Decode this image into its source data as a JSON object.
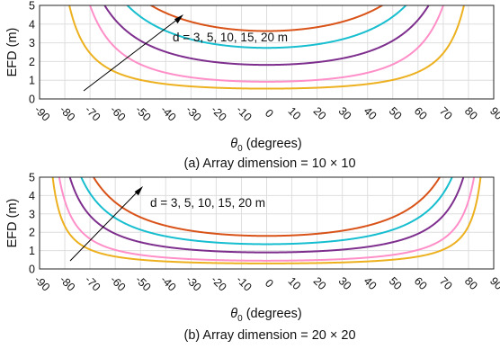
{
  "chart_data": [
    {
      "type": "line",
      "caption": "(a) Array dimension = 10 × 10",
      "xlabel": "θ",
      "xlabel_subscript": "0",
      "xlabel_suffix": " (degrees)",
      "ylabel": "EFD (m)",
      "xlim": [
        -90,
        90
      ],
      "ylim": [
        0,
        5
      ],
      "xticks": [
        "-90",
        "-80",
        "-70",
        "-60",
        "-50",
        "-40",
        "-30",
        "-20",
        "-10",
        "0",
        "10",
        "20",
        "30",
        "40",
        "50",
        "60",
        "70",
        "80",
        "90"
      ],
      "yticks": [
        "0",
        "1",
        "2",
        "3",
        "4",
        "5"
      ],
      "grid": true,
      "annotation": "d = 3, 5, 10, 15, 20 m",
      "series": [
        {
          "color": "#EDB120",
          "minimum_efd": 0.55,
          "edge_angle": 78.2
        },
        {
          "color": "#FF8FC8",
          "minimum_efd": 0.92,
          "edge_angle": 70.0
        },
        {
          "color": "#7E2F8E",
          "minimum_efd": 1.82,
          "edge_angle": 64.2
        },
        {
          "color": "#17BECF",
          "minimum_efd": 2.73,
          "edge_angle": 55.2
        },
        {
          "color": "#D95319",
          "minimum_efd": 3.63,
          "edge_angle": 45.8
        }
      ]
    },
    {
      "type": "line",
      "caption": "(b) Array dimension = 20 × 20",
      "xlabel": "θ",
      "xlabel_subscript": "0",
      "xlabel_suffix": " (degrees)",
      "ylabel": "EFD (m)",
      "xlim": [
        -90,
        90
      ],
      "ylim": [
        0,
        5
      ],
      "xticks": [
        "-90",
        "-80",
        "-70",
        "-60",
        "-50",
        "-40",
        "-30",
        "-20",
        "-10",
        "0",
        "10",
        "20",
        "30",
        "40",
        "50",
        "60",
        "70",
        "80",
        "90"
      ],
      "yticks": [
        "0",
        "1",
        "2",
        "3",
        "4",
        "5"
      ],
      "grid": true,
      "annotation": "d = 3, 5, 10, 15, 20 m",
      "series": [
        {
          "color": "#EDB120",
          "minimum_efd": 0.3,
          "edge_angle": 84.8
        },
        {
          "color": "#FF8FC8",
          "minimum_efd": 0.45,
          "edge_angle": 82.2
        },
        {
          "color": "#7E2F8E",
          "minimum_efd": 0.9,
          "edge_angle": 78.0
        },
        {
          "color": "#17BECF",
          "minimum_efd": 1.35,
          "edge_angle": 73.5
        },
        {
          "color": "#D95319",
          "minimum_efd": 1.8,
          "edge_angle": 68.6
        }
      ]
    }
  ]
}
